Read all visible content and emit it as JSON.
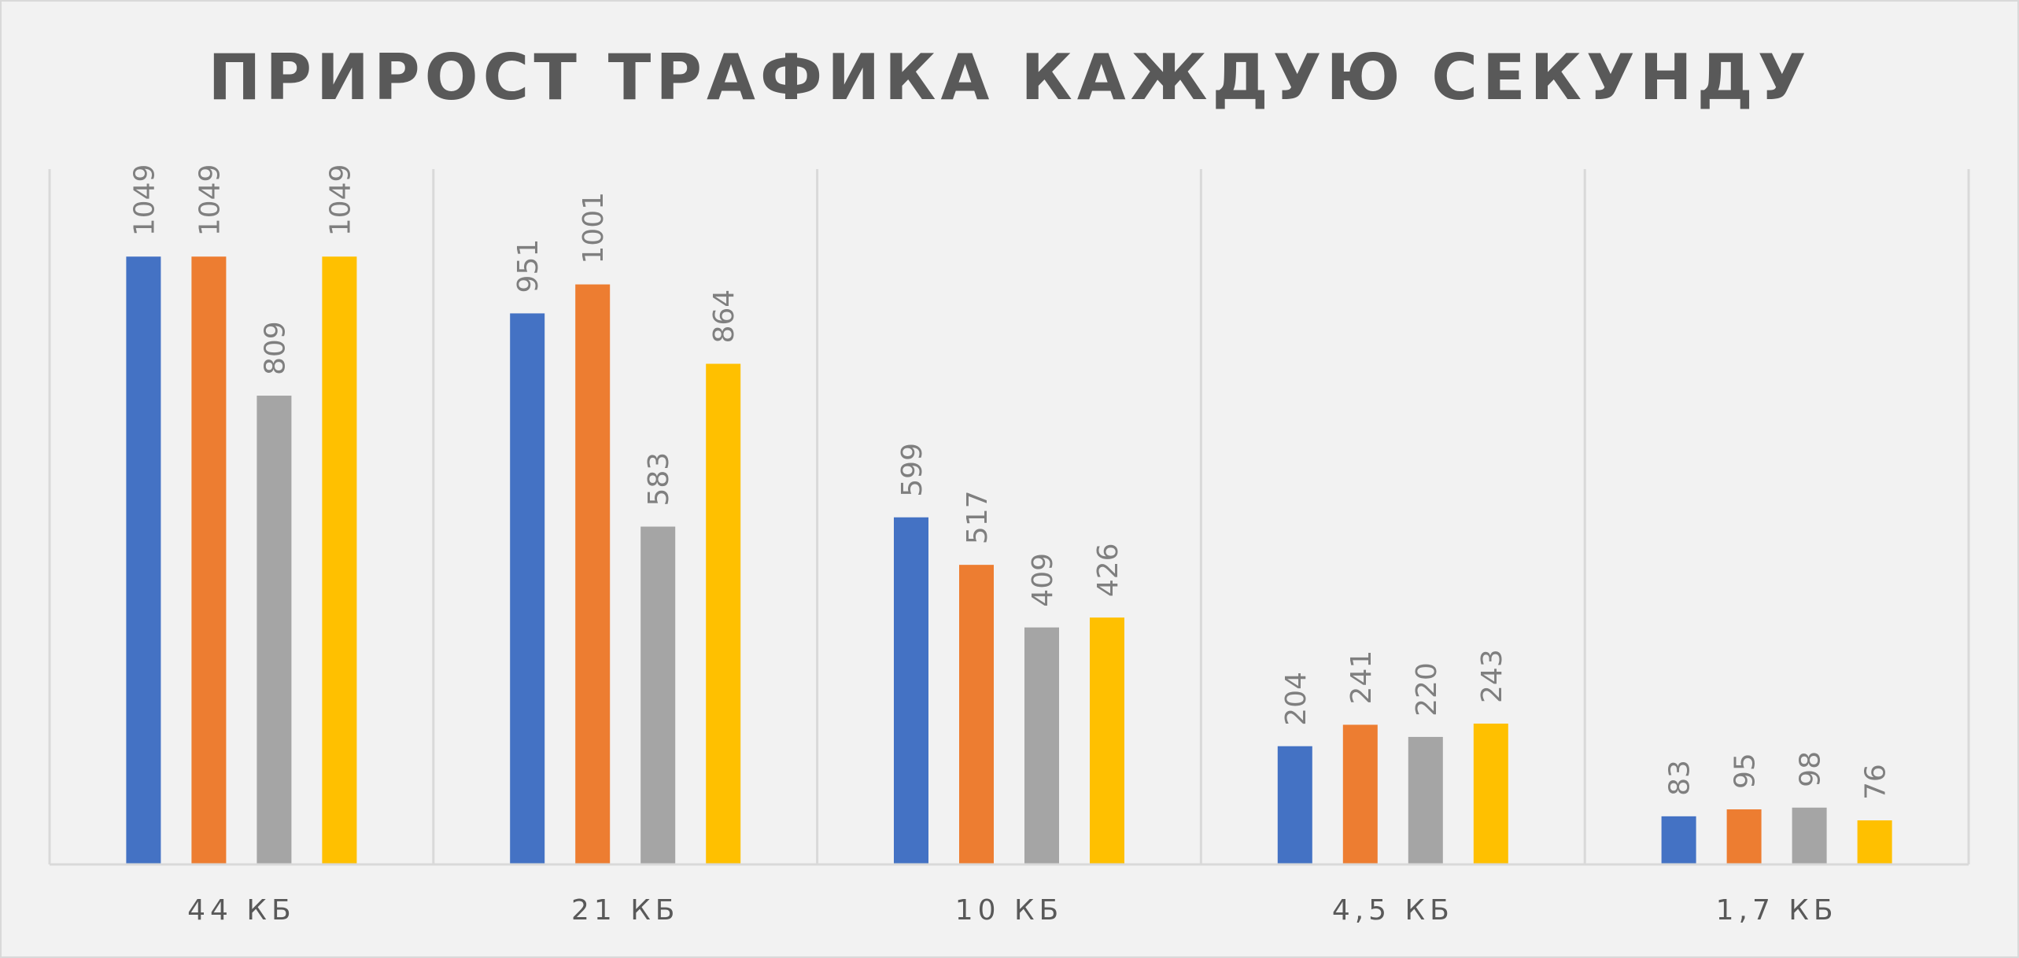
{
  "chart_data": {
    "type": "bar",
    "title": "ПРИРОСТ ТРАФИКА КАЖДУЮ СЕКУНДУ",
    "xlabel": "",
    "ylabel": "",
    "categories": [
      "44 КБ",
      "21 КБ",
      "10 КБ",
      "4,5 КБ",
      "1,7 КБ"
    ],
    "series": [
      {
        "color": "#4472c4",
        "values": [
          1049,
          951,
          599,
          204,
          83
        ]
      },
      {
        "color": "#ed7d31",
        "values": [
          1049,
          1001,
          517,
          241,
          95
        ]
      },
      {
        "color": "#a5a5a5",
        "values": [
          809,
          583,
          409,
          220,
          98
        ]
      },
      {
        "color": "#ffc000",
        "values": [
          1049,
          864,
          426,
          243,
          76
        ]
      }
    ],
    "ylim": [
      0,
      1200
    ],
    "grid": "vertical category separators",
    "legend": "none",
    "data_labels": "rotated, above bars"
  }
}
